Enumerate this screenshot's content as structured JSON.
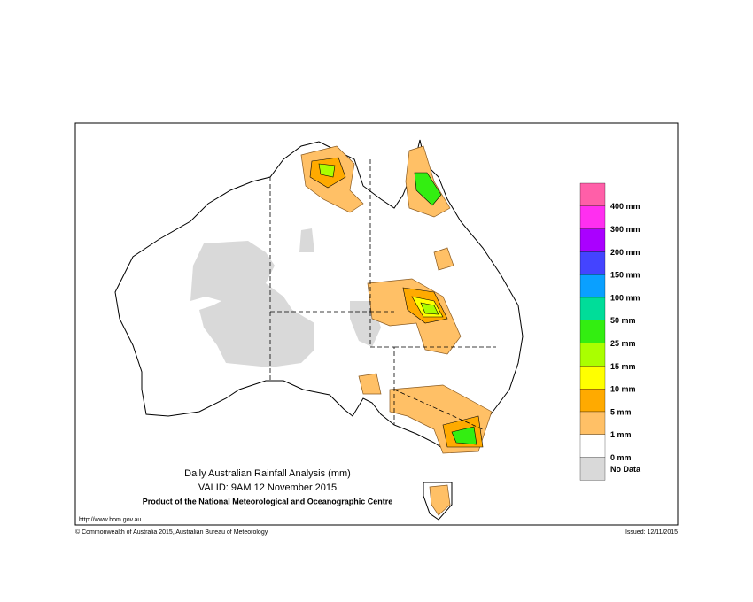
{
  "map": {
    "title": "Daily Australian Rainfall Analysis (mm)",
    "valid": "VALID: 9AM 12 November 2015",
    "producer": "Product of the National Meteorological and Oceanographic Centre",
    "url": "http://www.bom.gov.au",
    "copyright": "© Commonwealth of Australia 2015, Australian Bureau of Meteorology",
    "issued": "Issued: 12/11/2015",
    "legend": {
      "top_color": "#ff5fa8",
      "items": [
        {
          "label": "400 mm",
          "color": "#ff2ff0"
        },
        {
          "label": "300 mm",
          "color": "#aa00ff"
        },
        {
          "label": "200 mm",
          "color": "#4444ff"
        },
        {
          "label": "150 mm",
          "color": "#0aa0ff"
        },
        {
          "label": "100 mm",
          "color": "#00dd99"
        },
        {
          "label": "50 mm",
          "color": "#33ee11"
        },
        {
          "label": "25 mm",
          "color": "#aaff00"
        },
        {
          "label": "15 mm",
          "color": "#ffff00"
        },
        {
          "label": "10 mm",
          "color": "#ffaa00"
        },
        {
          "label": "5 mm",
          "color": "#ffc066"
        },
        {
          "label": "1 mm",
          "color": "#ffffff"
        },
        {
          "label": "0 mm",
          "color": "#d9d9d9"
        }
      ],
      "no_data": "No Data"
    }
  }
}
